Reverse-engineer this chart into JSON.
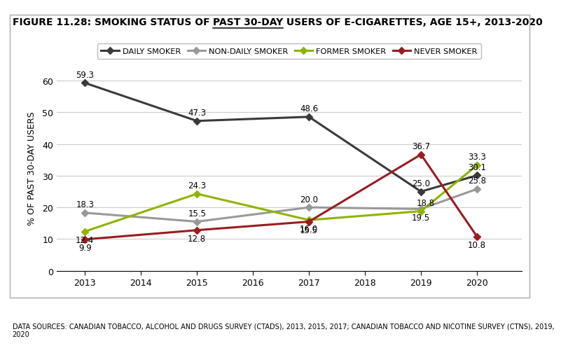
{
  "title_part1": "FIGURE 11.28: SMOKING STATUS OF ",
  "title_part2": "PAST 30-DAY",
  "title_part3": " USERS OF E-CIGARETTES, AGE 15+, 2013-2020",
  "ylabel": "% OF PAST 30-DAY USERS",
  "footnote": "DATA SOURCES: CANADIAN TOBACCO, ALCOHOL AND DRUGS SURVEY (CTADS), 2013, 2015, 2017; CANADIAN TOBACCO AND NICOTINE SURVEY (CTNS), 2019,\n2020",
  "x_ticks": [
    2013,
    2014,
    2015,
    2016,
    2017,
    2018,
    2019,
    2020
  ],
  "series": [
    {
      "name": "DAILY SMOKER",
      "years": [
        2013,
        2015,
        2017,
        2019,
        2020
      ],
      "values": [
        59.3,
        47.3,
        48.6,
        25.0,
        30.1
      ],
      "color": "#3a3a3a",
      "label_va": [
        "bottom",
        "bottom",
        "bottom",
        "bottom",
        "bottom"
      ],
      "label_dx": [
        0,
        0,
        0,
        0,
        0
      ],
      "label_dy": [
        4,
        4,
        4,
        4,
        4
      ]
    },
    {
      "name": "NON-DAILY SMOKER",
      "years": [
        2013,
        2015,
        2017,
        2019,
        2020
      ],
      "values": [
        18.3,
        15.5,
        20.0,
        19.5,
        25.8
      ],
      "color": "#999999",
      "label_va": [
        "bottom",
        "bottom",
        "bottom",
        "top",
        "bottom"
      ],
      "label_dx": [
        0,
        0,
        0,
        0,
        0
      ],
      "label_dy": [
        4,
        4,
        4,
        -4,
        4
      ]
    },
    {
      "name": "FORMER SMOKER",
      "years": [
        2013,
        2015,
        2017,
        2019,
        2020
      ],
      "values": [
        12.4,
        24.3,
        16.0,
        18.8,
        33.3
      ],
      "color": "#8db500",
      "label_va": [
        "top",
        "bottom",
        "top",
        "bottom",
        "bottom"
      ],
      "label_dx": [
        0,
        0,
        0,
        5,
        0
      ],
      "label_dy": [
        -4,
        4,
        -4,
        4,
        4
      ]
    },
    {
      "name": "NEVER SMOKER",
      "years": [
        2013,
        2015,
        2017,
        2019,
        2020
      ],
      "values": [
        9.9,
        12.8,
        15.5,
        36.7,
        10.8
      ],
      "color": "#9b1c21",
      "label_va": [
        "top",
        "top",
        "top",
        "bottom",
        "top"
      ],
      "label_dx": [
        0,
        0,
        0,
        0,
        0
      ],
      "label_dy": [
        -4,
        -4,
        -4,
        4,
        -4
      ]
    }
  ],
  "ylim": [
    0,
    65
  ],
  "yticks": [
    0,
    10,
    20,
    30,
    40,
    50,
    60
  ],
  "background_color": "#ffffff",
  "grid_color": "#cccccc",
  "title_fontsize": 10.0,
  "label_fontsize": 8.5,
  "axis_fontsize": 9.0,
  "legend_fontsize": 8.2
}
